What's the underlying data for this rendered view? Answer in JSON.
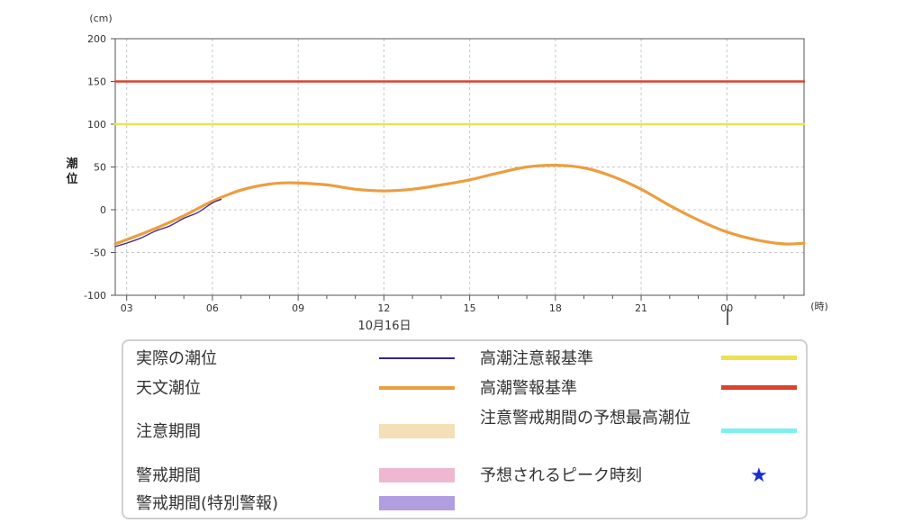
{
  "chart_data": {
    "type": "line",
    "y_unit": "(cm)",
    "x_unit": "(時)",
    "ylabel": "潮位",
    "ylim": [
      -100,
      200
    ],
    "yticks": [
      200,
      150,
      100,
      50,
      0,
      -50,
      -100
    ],
    "xlim": [
      2.6,
      26.7
    ],
    "xticks": [
      {
        "h": 3,
        "label": "03"
      },
      {
        "h": 6,
        "label": "06"
      },
      {
        "h": 9,
        "label": "09"
      },
      {
        "h": 12,
        "label": "12"
      },
      {
        "h": 15,
        "label": "15"
      },
      {
        "h": 18,
        "label": "18"
      },
      {
        "h": 21,
        "label": "21"
      },
      {
        "h": 24,
        "label": "00"
      }
    ],
    "date_label": "10月16日",
    "grid": true,
    "series": [
      {
        "name": "高潮警報基準",
        "color": "#d9432f",
        "x": [
          2.6,
          26.7
        ],
        "y": [
          150,
          150
        ]
      },
      {
        "name": "高潮注意報基準",
        "color": "#eae252",
        "x": [
          2.6,
          26.7
        ],
        "y": [
          100,
          100
        ]
      },
      {
        "name": "天文潮位",
        "color": "#ec9e3f",
        "x": [
          2.6,
          3,
          4,
          5,
          6,
          7,
          8,
          8.8,
          10,
          11,
          12,
          13,
          14,
          15,
          16,
          17,
          18,
          19,
          20,
          21,
          22,
          23,
          24,
          25,
          26,
          26.7
        ],
        "y": [
          -40,
          -35,
          -22,
          -7,
          10,
          23,
          30,
          31.5,
          29,
          24,
          22,
          24,
          29,
          35,
          43,
          50,
          52,
          49,
          39,
          24,
          5,
          -12,
          -26,
          -35,
          -40,
          -39
        ]
      },
      {
        "name": "実際の潮位",
        "color": "#3b2390",
        "x": [
          2.6,
          3,
          3.5,
          4,
          4.5,
          5,
          5.5,
          6,
          6.3
        ],
        "y": [
          -43,
          -39,
          -33,
          -25,
          -19,
          -10,
          -3,
          8,
          12
        ]
      }
    ]
  },
  "legend": {
    "actual": "実際の潮位",
    "astro": "天文潮位",
    "caution_period": "注意期間",
    "warning_period": "警戒期間",
    "special_period": "警戒期間(特別警報)",
    "storm_caution": "高潮注意報基準",
    "storm_warning": "高潮警報基準",
    "max_predicted": "注意警戒期間の予想最高潮位",
    "peak_time": "予想されるピーク時刻"
  },
  "colors": {
    "actual": "#3b2390",
    "astro": "#ec9e3f",
    "caution_period": "#f5dfb6",
    "warning_period": "#f0b7d1",
    "special_period": "#b19ee0",
    "storm_caution": "#eae252",
    "storm_warning": "#d9432f",
    "max_predicted": "#7ff0f2",
    "peak_star": "#1a2bd8"
  },
  "icons": {
    "peak": "star-icon"
  }
}
